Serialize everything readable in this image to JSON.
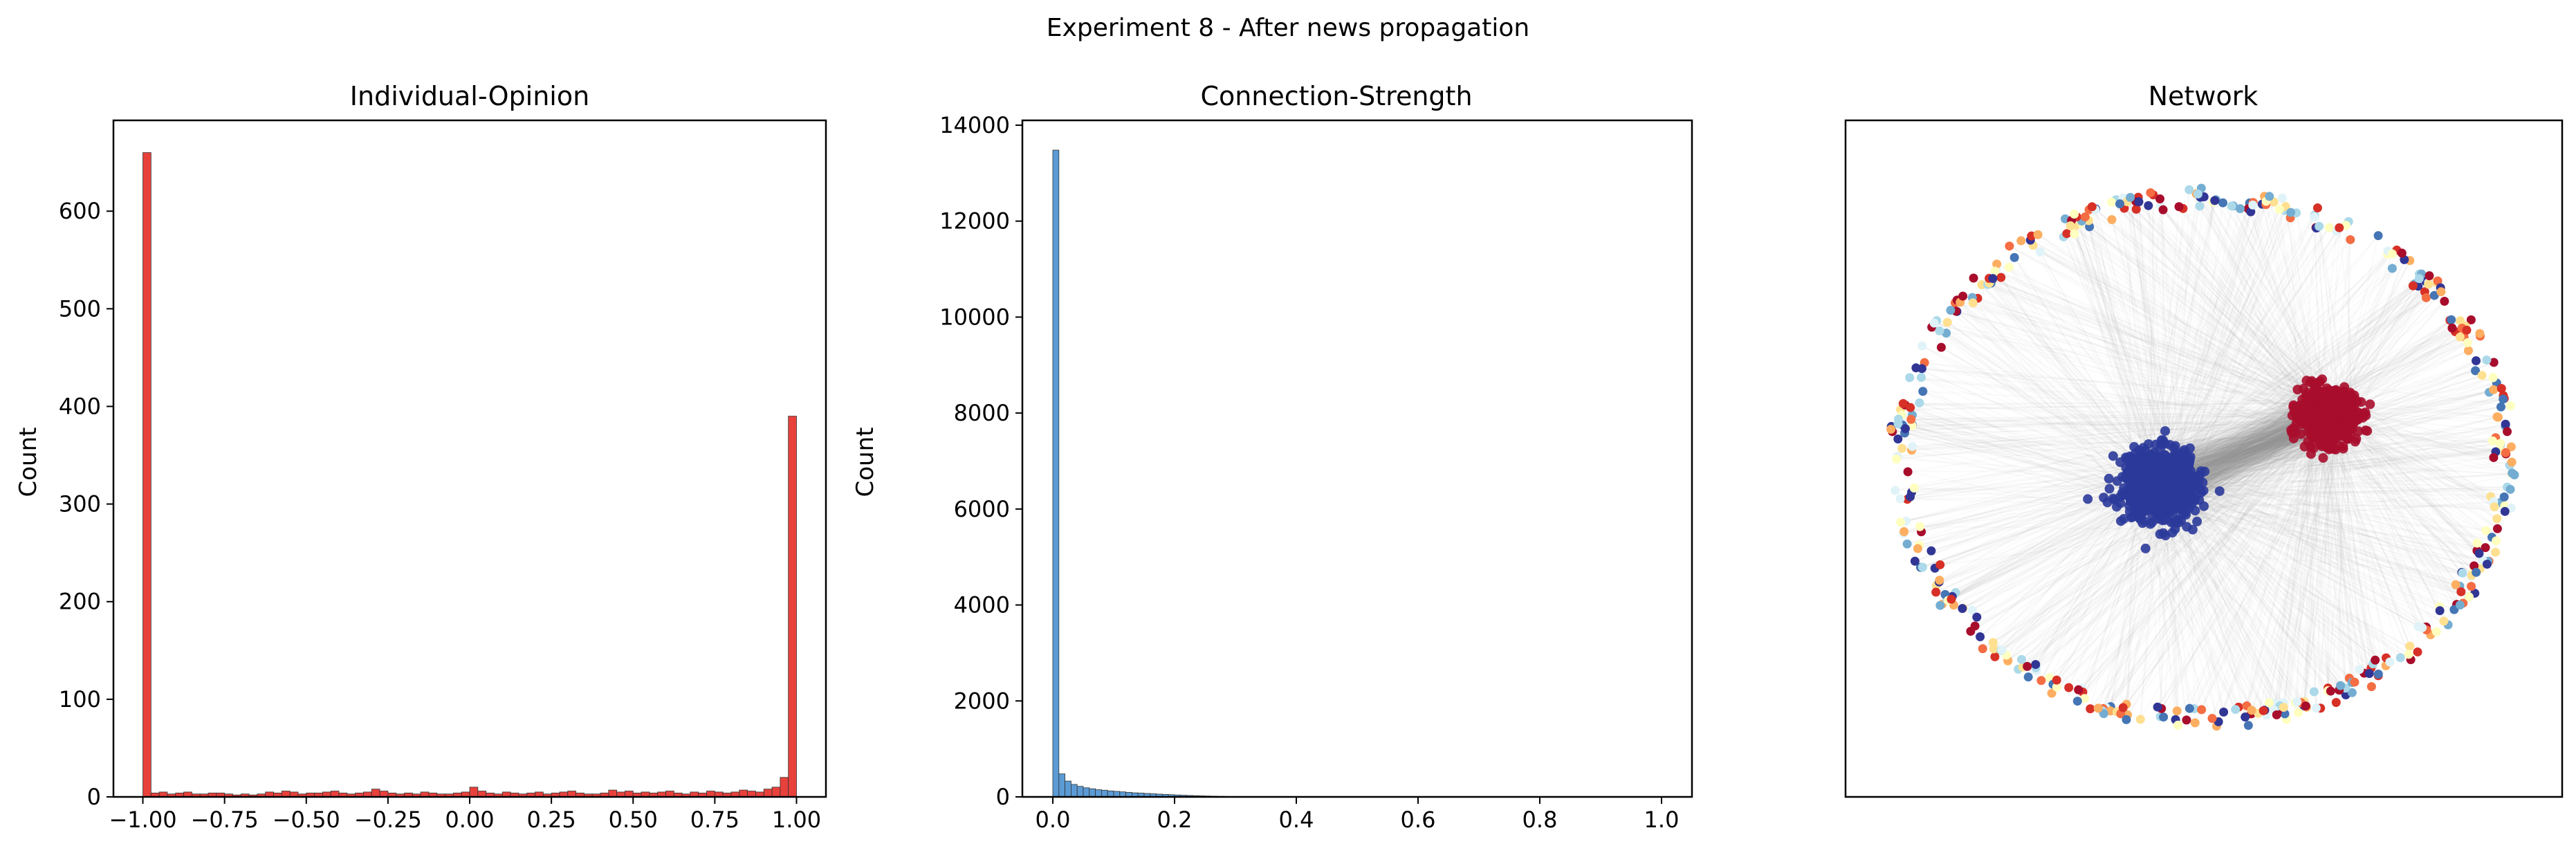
{
  "figure": {
    "suptitle": "Experiment 8 - After news propagation"
  },
  "chart_data": [
    {
      "type": "bar",
      "title": "Individual-Opinion",
      "xlabel": "",
      "ylabel": "Count",
      "xlim": [
        -1.09,
        1.09
      ],
      "ylim": [
        0,
        693
      ],
      "xticks": [
        -1.0,
        -0.75,
        -0.5,
        -0.25,
        0.0,
        0.25,
        0.5,
        0.75,
        1.0
      ],
      "xtick_labels": [
        "−1.00",
        "−0.75",
        "−0.50",
        "−0.25",
        "0.00",
        "0.25",
        "0.50",
        "0.75",
        "1.00"
      ],
      "yticks": [
        0,
        100,
        200,
        300,
        400,
        500,
        600
      ],
      "ytick_labels": [
        "0",
        "100",
        "200",
        "300",
        "400",
        "500",
        "600"
      ],
      "bins": {
        "start": -1.0,
        "end": 1.0,
        "count": 80
      },
      "values": [
        660,
        4,
        5,
        3,
        4,
        5,
        3,
        3,
        4,
        4,
        3,
        2,
        3,
        2,
        3,
        5,
        4,
        6,
        5,
        3,
        4,
        4,
        5,
        6,
        4,
        3,
        4,
        5,
        8,
        6,
        4,
        3,
        4,
        3,
        5,
        4,
        3,
        3,
        4,
        5,
        10,
        6,
        4,
        3,
        5,
        4,
        3,
        4,
        5,
        3,
        4,
        5,
        6,
        4,
        3,
        3,
        4,
        7,
        5,
        6,
        4,
        5,
        4,
        5,
        6,
        4,
        3,
        5,
        4,
        6,
        5,
        4,
        5,
        7,
        6,
        5,
        8,
        10,
        20,
        390
      ],
      "colors": {
        "bar": "#e8413c",
        "edge": "#333333"
      },
      "grid": false,
      "legend": "none"
    },
    {
      "type": "bar",
      "title": "Connection-Strength",
      "xlabel": "",
      "ylabel": "Count",
      "xlim": [
        -0.05,
        1.05
      ],
      "ylim": [
        0,
        14100
      ],
      "xticks": [
        0.0,
        0.2,
        0.4,
        0.6,
        0.8,
        1.0
      ],
      "xtick_labels": [
        "0.0",
        "0.2",
        "0.4",
        "0.6",
        "0.8",
        "1.0"
      ],
      "yticks": [
        0,
        2000,
        4000,
        6000,
        8000,
        10000,
        12000,
        14000
      ],
      "ytick_labels": [
        "0",
        "2000",
        "4000",
        "6000",
        "8000",
        "10000",
        "12000",
        "14000"
      ],
      "bins": {
        "start": 0.0,
        "end": 1.0,
        "count": 100
      },
      "values": [
        13480,
        480,
        330,
        260,
        220,
        190,
        170,
        150,
        140,
        125,
        115,
        105,
        95,
        85,
        80,
        72,
        65,
        58,
        52,
        46,
        40,
        35,
        30,
        26,
        22,
        18,
        15,
        12,
        10,
        8,
        6,
        5,
        4,
        3,
        3,
        2,
        2,
        2,
        1,
        1,
        1,
        1,
        1,
        1,
        1,
        1,
        1,
        1,
        1,
        1,
        0,
        0,
        0,
        0,
        0,
        0,
        0,
        0,
        0,
        0,
        0,
        0,
        0,
        0,
        0,
        0,
        0,
        0,
        0,
        0,
        0,
        0,
        0,
        0,
        0,
        0,
        0,
        0,
        0,
        0,
        0,
        0,
        0,
        0,
        0,
        0,
        0,
        0,
        0,
        0,
        0,
        0,
        0,
        0,
        0,
        0,
        0,
        0,
        0,
        0
      ],
      "colors": {
        "bar": "#5b9bd5",
        "edge": "#333333"
      },
      "grid": false,
      "legend": "none"
    },
    {
      "type": "scatter",
      "title": "Network",
      "xlabel": "",
      "ylabel": "",
      "axes": "hidden",
      "clusters": [
        {
          "center": [
            -0.13,
            -0.08
          ],
          "spread": [
            0.1,
            0.095
          ],
          "count": 800,
          "color": "#2b3a9a"
        },
        {
          "center": [
            0.38,
            0.13
          ],
          "spread": [
            0.08,
            0.07
          ],
          "count": 650,
          "color": "#a80d2c"
        }
      ],
      "ring": {
        "radius": [
          0.92,
          0.8
        ],
        "count": 450
      },
      "ring_palette": [
        "#a80d2c",
        "#d73027",
        "#f46d43",
        "#fdae61",
        "#fee090",
        "#ffffbf",
        "#e0f3f8",
        "#abd9e9",
        "#74add1",
        "#4575b4",
        "#313695"
      ],
      "edge_color": "#999999"
    }
  ]
}
